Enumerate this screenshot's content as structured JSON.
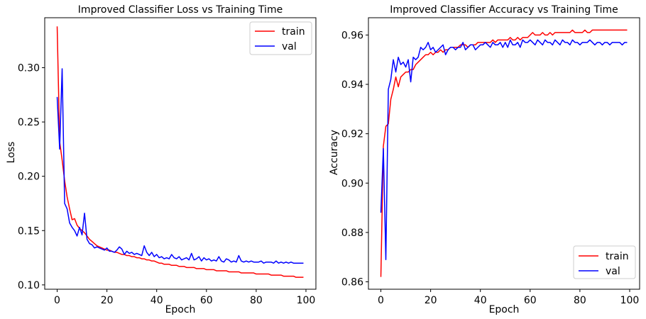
{
  "chart_data": [
    {
      "type": "line",
      "title": "Improved Classifier Loss vs Training Time",
      "xlabel": "Epoch",
      "ylabel": "Loss",
      "xlim": [
        -5,
        104
      ],
      "ylim": [
        0.096,
        0.346
      ],
      "xticks": [
        0,
        20,
        40,
        60,
        80,
        100
      ],
      "xtick_labels": [
        "0",
        "20",
        "40",
        "60",
        "80",
        "100"
      ],
      "yticks": [
        0.1,
        0.15,
        0.2,
        0.25,
        0.3
      ],
      "ytick_labels": [
        "0.10",
        "0.15",
        "0.20",
        "0.25",
        "0.30"
      ],
      "grid": false,
      "legend_position": "top-right",
      "colors": {
        "train": "#ff0000",
        "val": "#0000ff"
      },
      "x": [
        0,
        1,
        2,
        3,
        4,
        5,
        6,
        7,
        8,
        9,
        10,
        11,
        12,
        13,
        14,
        15,
        16,
        17,
        18,
        19,
        20,
        21,
        22,
        23,
        24,
        25,
        26,
        27,
        28,
        29,
        30,
        31,
        32,
        33,
        34,
        35,
        36,
        37,
        38,
        39,
        40,
        41,
        42,
        43,
        44,
        45,
        46,
        47,
        48,
        49,
        50,
        51,
        52,
        53,
        54,
        55,
        56,
        57,
        58,
        59,
        60,
        61,
        62,
        63,
        64,
        65,
        66,
        67,
        68,
        69,
        70,
        71,
        72,
        73,
        74,
        75,
        76,
        77,
        78,
        79,
        80,
        81,
        82,
        83,
        84,
        85,
        86,
        87,
        88,
        89,
        90,
        91,
        92,
        93,
        94,
        95,
        96,
        97,
        98,
        99
      ],
      "series": [
        {
          "name": "train",
          "values": [
            0.338,
            0.232,
            0.215,
            0.196,
            0.181,
            0.17,
            0.16,
            0.161,
            0.155,
            0.152,
            0.15,
            0.148,
            0.145,
            0.142,
            0.14,
            0.138,
            0.136,
            0.135,
            0.134,
            0.133,
            0.132,
            0.132,
            0.131,
            0.13,
            0.13,
            0.129,
            0.128,
            0.128,
            0.127,
            0.127,
            0.126,
            0.126,
            0.125,
            0.125,
            0.124,
            0.124,
            0.123,
            0.123,
            0.122,
            0.122,
            0.121,
            0.12,
            0.12,
            0.119,
            0.119,
            0.119,
            0.118,
            0.118,
            0.118,
            0.117,
            0.117,
            0.117,
            0.116,
            0.116,
            0.116,
            0.116,
            0.115,
            0.115,
            0.115,
            0.115,
            0.114,
            0.114,
            0.114,
            0.114,
            0.113,
            0.113,
            0.113,
            0.113,
            0.113,
            0.112,
            0.112,
            0.112,
            0.112,
            0.112,
            0.111,
            0.111,
            0.111,
            0.111,
            0.111,
            0.111,
            0.11,
            0.11,
            0.11,
            0.11,
            0.11,
            0.11,
            0.109,
            0.109,
            0.109,
            0.109,
            0.109,
            0.108,
            0.108,
            0.108,
            0.108,
            0.108,
            0.107,
            0.107,
            0.107,
            0.107
          ]
        },
        {
          "name": "val",
          "values": [
            0.273,
            0.225,
            0.299,
            0.175,
            0.17,
            0.157,
            0.153,
            0.15,
            0.145,
            0.153,
            0.146,
            0.166,
            0.142,
            0.138,
            0.137,
            0.134,
            0.135,
            0.134,
            0.133,
            0.132,
            0.134,
            0.131,
            0.131,
            0.13,
            0.132,
            0.135,
            0.133,
            0.128,
            0.131,
            0.129,
            0.13,
            0.128,
            0.129,
            0.128,
            0.127,
            0.136,
            0.13,
            0.127,
            0.13,
            0.126,
            0.128,
            0.125,
            0.126,
            0.124,
            0.125,
            0.124,
            0.128,
            0.125,
            0.124,
            0.126,
            0.123,
            0.124,
            0.125,
            0.123,
            0.129,
            0.123,
            0.124,
            0.126,
            0.122,
            0.125,
            0.123,
            0.124,
            0.122,
            0.123,
            0.122,
            0.126,
            0.122,
            0.121,
            0.124,
            0.123,
            0.121,
            0.122,
            0.121,
            0.127,
            0.122,
            0.121,
            0.122,
            0.121,
            0.122,
            0.121,
            0.121,
            0.121,
            0.122,
            0.12,
            0.121,
            0.121,
            0.121,
            0.12,
            0.122,
            0.12,
            0.121,
            0.12,
            0.121,
            0.12,
            0.121,
            0.12,
            0.12,
            0.12,
            0.12,
            0.12
          ]
        }
      ]
    },
    {
      "type": "line",
      "title": "Improved Classifier Accuracy vs Training Time",
      "xlabel": "Epoch",
      "ylabel": "Accuracy",
      "xlim": [
        -5,
        104
      ],
      "ylim": [
        0.857,
        0.967
      ],
      "xticks": [
        0,
        20,
        40,
        60,
        80,
        100
      ],
      "xtick_labels": [
        "0",
        "20",
        "40",
        "60",
        "80",
        "100"
      ],
      "yticks": [
        0.86,
        0.88,
        0.9,
        0.92,
        0.94,
        0.96
      ],
      "ytick_labels": [
        "0.86",
        "0.88",
        "0.90",
        "0.92",
        "0.94",
        "0.96"
      ],
      "grid": false,
      "legend_position": "bottom-right",
      "colors": {
        "train": "#ff0000",
        "val": "#0000ff"
      },
      "x": [
        0,
        1,
        2,
        3,
        4,
        5,
        6,
        7,
        8,
        9,
        10,
        11,
        12,
        13,
        14,
        15,
        16,
        17,
        18,
        19,
        20,
        21,
        22,
        23,
        24,
        25,
        26,
        27,
        28,
        29,
        30,
        31,
        32,
        33,
        34,
        35,
        36,
        37,
        38,
        39,
        40,
        41,
        42,
        43,
        44,
        45,
        46,
        47,
        48,
        49,
        50,
        51,
        52,
        53,
        54,
        55,
        56,
        57,
        58,
        59,
        60,
        61,
        62,
        63,
        64,
        65,
        66,
        67,
        68,
        69,
        70,
        71,
        72,
        73,
        74,
        75,
        76,
        77,
        78,
        79,
        80,
        81,
        82,
        83,
        84,
        85,
        86,
        87,
        88,
        89,
        90,
        91,
        92,
        93,
        94,
        95,
        96,
        97,
        98,
        99
      ],
      "series": [
        {
          "name": "train",
          "values": [
            0.862,
            0.915,
            0.923,
            0.924,
            0.934,
            0.938,
            0.943,
            0.939,
            0.943,
            0.944,
            0.945,
            0.945,
            0.946,
            0.946,
            0.948,
            0.949,
            0.95,
            0.951,
            0.952,
            0.952,
            0.953,
            0.952,
            0.953,
            0.953,
            0.954,
            0.953,
            0.954,
            0.954,
            0.955,
            0.955,
            0.955,
            0.955,
            0.956,
            0.956,
            0.956,
            0.955,
            0.956,
            0.956,
            0.956,
            0.957,
            0.957,
            0.957,
            0.957,
            0.957,
            0.957,
            0.958,
            0.957,
            0.958,
            0.958,
            0.958,
            0.958,
            0.958,
            0.959,
            0.958,
            0.958,
            0.959,
            0.958,
            0.959,
            0.959,
            0.959,
            0.96,
            0.961,
            0.96,
            0.96,
            0.96,
            0.961,
            0.96,
            0.96,
            0.961,
            0.96,
            0.961,
            0.961,
            0.961,
            0.961,
            0.961,
            0.961,
            0.961,
            0.962,
            0.961,
            0.961,
            0.961,
            0.961,
            0.962,
            0.961,
            0.961,
            0.962,
            0.962,
            0.962,
            0.962,
            0.962,
            0.962,
            0.962,
            0.962,
            0.962,
            0.962,
            0.962,
            0.962,
            0.962,
            0.962,
            0.962
          ]
        },
        {
          "name": "val",
          "values": [
            0.888,
            0.914,
            0.869,
            0.938,
            0.942,
            0.95,
            0.945,
            0.951,
            0.948,
            0.949,
            0.947,
            0.95,
            0.941,
            0.951,
            0.95,
            0.951,
            0.955,
            0.954,
            0.955,
            0.957,
            0.954,
            0.955,
            0.953,
            0.954,
            0.955,
            0.956,
            0.952,
            0.954,
            0.955,
            0.955,
            0.954,
            0.955,
            0.955,
            0.957,
            0.954,
            0.955,
            0.956,
            0.956,
            0.954,
            0.955,
            0.956,
            0.956,
            0.957,
            0.956,
            0.955,
            0.957,
            0.956,
            0.956,
            0.957,
            0.955,
            0.957,
            0.955,
            0.958,
            0.956,
            0.956,
            0.957,
            0.955,
            0.958,
            0.957,
            0.957,
            0.958,
            0.957,
            0.956,
            0.958,
            0.957,
            0.956,
            0.958,
            0.957,
            0.957,
            0.956,
            0.958,
            0.957,
            0.956,
            0.958,
            0.957,
            0.957,
            0.956,
            0.958,
            0.957,
            0.957,
            0.956,
            0.957,
            0.957,
            0.957,
            0.958,
            0.957,
            0.956,
            0.957,
            0.957,
            0.956,
            0.957,
            0.957,
            0.956,
            0.957,
            0.957,
            0.957,
            0.957,
            0.956,
            0.957,
            0.957
          ]
        }
      ]
    }
  ]
}
